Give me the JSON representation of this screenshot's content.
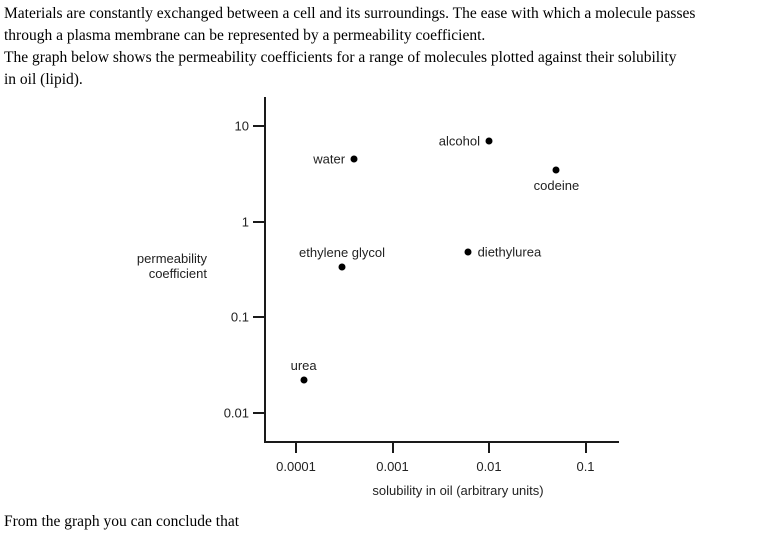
{
  "page": {
    "paragraph1": "Materials are constantly exchanged between a cell and its surroundings. The ease with which a molecule passes\nthrough a plasma membrane can be represented by a permeability coefficient.",
    "paragraph2": "The graph below shows the permeability coefficients for a range of molecules plotted against their solubility\nin oil (lipid).",
    "footer": "From the graph you can conclude that"
  },
  "chart_data": {
    "type": "scatter",
    "title": "",
    "x_axis": {
      "label": "solubility in oil (arbitrary units)",
      "scale": "log",
      "ticks": [
        0.0001,
        0.001,
        0.01,
        0.1
      ],
      "tick_labels": [
        "0.0001",
        "0.001",
        "0.01",
        "0.1"
      ],
      "range": [
        5e-05,
        0.22
      ]
    },
    "y_axis": {
      "label": "permeability coefficient",
      "label_lines": [
        "permeability",
        "coefficient"
      ],
      "scale": "log",
      "ticks": [
        10,
        1,
        0.1,
        0.01
      ],
      "tick_labels": [
        "10",
        "1",
        "0.1",
        "0.01"
      ],
      "range": [
        0.005,
        20
      ]
    },
    "grid": false,
    "legend": false,
    "point_color": "#000000",
    "points": [
      {
        "name": "water",
        "x": 0.0004,
        "y": 4.5,
        "label_pos": "left"
      },
      {
        "name": "alcohol",
        "x": 0.01,
        "y": 7,
        "label_pos": "left"
      },
      {
        "name": "codeine",
        "x": 0.05,
        "y": 3.5,
        "label_pos": "below"
      },
      {
        "name": "ethylene glycol",
        "x": 0.0003,
        "y": 0.33,
        "label_pos": "above"
      },
      {
        "name": "diethylurea",
        "x": 0.006,
        "y": 0.48,
        "label_pos": "right"
      },
      {
        "name": "urea",
        "x": 0.00012,
        "y": 0.022,
        "label_pos": "above"
      }
    ]
  }
}
